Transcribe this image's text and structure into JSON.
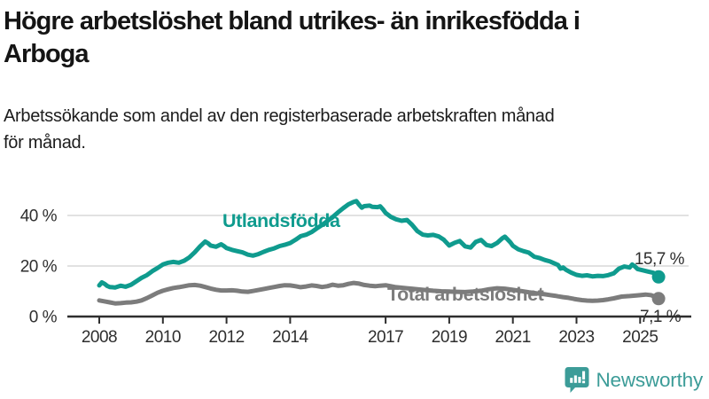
{
  "header": {
    "title_lines": [
      "Högre arbetslöshet bland utrikes- än inrikesfödda i",
      "Arboga"
    ],
    "subtitle_lines": [
      "Arbetssökande som andel av den registerbaserade arbetskraften månad",
      "för månad."
    ]
  },
  "chart_data": {
    "type": "line",
    "title": "Högre arbetslöshet bland utrikes- än inrikesfödda i Arboga",
    "subtitle": "Arbetssökande som andel av den registerbaserade arbetskraften månad för månad.",
    "xlabel": "",
    "ylabel": "",
    "ylim": [
      0,
      48
    ],
    "xlim": [
      2007.9,
      2026.3
    ],
    "grid": "horizontal",
    "legend_position": "inline-labels",
    "x_ticks": [
      2008,
      2010,
      2012,
      2014,
      2017,
      2019,
      2021,
      2023,
      2025
    ],
    "y_ticks": [
      {
        "value": 0,
        "label": "0 %"
      },
      {
        "value": 20,
        "label": "20 %"
      },
      {
        "value": 40,
        "label": "40 %"
      }
    ],
    "axis_color": "#2e2e2e",
    "grid_color": "#d8d8d8",
    "series": [
      {
        "name": "Utlandsfödda",
        "color": "#0f9b8e",
        "end_label": "15,7 %",
        "end_value": 15.7,
        "points": [
          [
            2008.0,
            12.3
          ],
          [
            2008.08,
            13.5
          ],
          [
            2008.17,
            12.9
          ],
          [
            2008.25,
            12.1
          ],
          [
            2008.33,
            11.7
          ],
          [
            2008.5,
            11.5
          ],
          [
            2008.67,
            12.2
          ],
          [
            2008.83,
            11.8
          ],
          [
            2009.0,
            12.6
          ],
          [
            2009.17,
            14.0
          ],
          [
            2009.33,
            15.3
          ],
          [
            2009.5,
            16.4
          ],
          [
            2009.67,
            18.0
          ],
          [
            2009.83,
            19.2
          ],
          [
            2010.0,
            20.6
          ],
          [
            2010.17,
            21.3
          ],
          [
            2010.33,
            21.6
          ],
          [
            2010.5,
            21.3
          ],
          [
            2010.67,
            22.1
          ],
          [
            2010.83,
            23.4
          ],
          [
            2011.0,
            25.4
          ],
          [
            2011.17,
            27.8
          ],
          [
            2011.33,
            29.7
          ],
          [
            2011.42,
            29.0
          ],
          [
            2011.5,
            28.1
          ],
          [
            2011.67,
            27.6
          ],
          [
            2011.83,
            28.6
          ],
          [
            2011.92,
            27.9
          ],
          [
            2012.0,
            27.1
          ],
          [
            2012.17,
            26.4
          ],
          [
            2012.33,
            25.9
          ],
          [
            2012.5,
            25.4
          ],
          [
            2012.67,
            24.5
          ],
          [
            2012.83,
            24.1
          ],
          [
            2013.0,
            24.7
          ],
          [
            2013.17,
            25.6
          ],
          [
            2013.33,
            26.4
          ],
          [
            2013.5,
            27.0
          ],
          [
            2013.67,
            27.9
          ],
          [
            2013.83,
            28.4
          ],
          [
            2014.0,
            29.1
          ],
          [
            2014.17,
            30.4
          ],
          [
            2014.33,
            31.8
          ],
          [
            2014.5,
            32.4
          ],
          [
            2014.67,
            33.4
          ],
          [
            2014.83,
            34.8
          ],
          [
            2015.0,
            36.2
          ],
          [
            2015.17,
            37.8
          ],
          [
            2015.33,
            39.3
          ],
          [
            2015.5,
            41.2
          ],
          [
            2015.67,
            42.9
          ],
          [
            2015.83,
            44.4
          ],
          [
            2016.0,
            45.4
          ],
          [
            2016.08,
            45.7
          ],
          [
            2016.17,
            44.2
          ],
          [
            2016.25,
            43.1
          ],
          [
            2016.33,
            43.7
          ],
          [
            2016.5,
            43.9
          ],
          [
            2016.58,
            43.4
          ],
          [
            2016.75,
            43.3
          ],
          [
            2016.83,
            43.6
          ],
          [
            2016.92,
            42.4
          ],
          [
            2017.0,
            41.0
          ],
          [
            2017.17,
            39.4
          ],
          [
            2017.33,
            38.5
          ],
          [
            2017.5,
            37.9
          ],
          [
            2017.67,
            38.2
          ],
          [
            2017.83,
            36.3
          ],
          [
            2018.0,
            33.8
          ],
          [
            2018.17,
            32.4
          ],
          [
            2018.33,
            32.1
          ],
          [
            2018.5,
            32.3
          ],
          [
            2018.67,
            31.7
          ],
          [
            2018.83,
            30.4
          ],
          [
            2019.0,
            28.1
          ],
          [
            2019.17,
            29.2
          ],
          [
            2019.33,
            29.9
          ],
          [
            2019.5,
            27.8
          ],
          [
            2019.67,
            27.3
          ],
          [
            2019.83,
            29.5
          ],
          [
            2020.0,
            30.3
          ],
          [
            2020.17,
            28.3
          ],
          [
            2020.33,
            27.9
          ],
          [
            2020.5,
            29.1
          ],
          [
            2020.67,
            31.0
          ],
          [
            2020.75,
            31.6
          ],
          [
            2020.92,
            29.4
          ],
          [
            2021.0,
            28.0
          ],
          [
            2021.17,
            26.6
          ],
          [
            2021.33,
            25.9
          ],
          [
            2021.5,
            25.3
          ],
          [
            2021.67,
            23.7
          ],
          [
            2021.83,
            23.2
          ],
          [
            2022.0,
            22.4
          ],
          [
            2022.17,
            21.8
          ],
          [
            2022.33,
            20.9
          ],
          [
            2022.42,
            20.4
          ],
          [
            2022.5,
            19.0
          ],
          [
            2022.58,
            19.4
          ],
          [
            2022.67,
            18.5
          ],
          [
            2022.83,
            17.4
          ],
          [
            2023.0,
            16.5
          ],
          [
            2023.17,
            16.1
          ],
          [
            2023.33,
            16.3
          ],
          [
            2023.5,
            15.9
          ],
          [
            2023.67,
            16.1
          ],
          [
            2023.83,
            16.0
          ],
          [
            2024.0,
            16.4
          ],
          [
            2024.17,
            17.1
          ],
          [
            2024.33,
            18.9
          ],
          [
            2024.5,
            19.8
          ],
          [
            2024.67,
            19.4
          ],
          [
            2024.75,
            20.6
          ],
          [
            2024.83,
            19.9
          ],
          [
            2024.92,
            18.8
          ],
          [
            2025.08,
            18.3
          ],
          [
            2025.25,
            17.8
          ],
          [
            2025.42,
            17.3
          ],
          [
            2025.58,
            15.7
          ]
        ]
      },
      {
        "name": "Total arbetslöshet",
        "color": "#7c7c7c",
        "end_label": "7,1 %",
        "end_value": 7.1,
        "points": [
          [
            2008.0,
            6.4
          ],
          [
            2008.17,
            6.0
          ],
          [
            2008.33,
            5.6
          ],
          [
            2008.5,
            5.2
          ],
          [
            2008.67,
            5.3
          ],
          [
            2008.83,
            5.5
          ],
          [
            2009.0,
            5.6
          ],
          [
            2009.17,
            5.9
          ],
          [
            2009.33,
            6.4
          ],
          [
            2009.5,
            7.3
          ],
          [
            2009.67,
            8.4
          ],
          [
            2009.83,
            9.4
          ],
          [
            2010.0,
            10.2
          ],
          [
            2010.17,
            10.8
          ],
          [
            2010.33,
            11.3
          ],
          [
            2010.5,
            11.6
          ],
          [
            2010.67,
            12.0
          ],
          [
            2010.83,
            12.4
          ],
          [
            2011.0,
            12.5
          ],
          [
            2011.17,
            12.2
          ],
          [
            2011.33,
            11.7
          ],
          [
            2011.5,
            11.1
          ],
          [
            2011.67,
            10.6
          ],
          [
            2011.83,
            10.3
          ],
          [
            2012.0,
            10.3
          ],
          [
            2012.17,
            10.4
          ],
          [
            2012.33,
            10.2
          ],
          [
            2012.5,
            9.9
          ],
          [
            2012.67,
            9.8
          ],
          [
            2012.83,
            10.1
          ],
          [
            2013.0,
            10.5
          ],
          [
            2013.17,
            10.9
          ],
          [
            2013.33,
            11.3
          ],
          [
            2013.5,
            11.7
          ],
          [
            2013.67,
            12.1
          ],
          [
            2013.83,
            12.4
          ],
          [
            2014.0,
            12.3
          ],
          [
            2014.17,
            12.0
          ],
          [
            2014.33,
            11.6
          ],
          [
            2014.5,
            11.9
          ],
          [
            2014.67,
            12.3
          ],
          [
            2014.83,
            12.1
          ],
          [
            2015.0,
            11.7
          ],
          [
            2015.17,
            12.0
          ],
          [
            2015.33,
            12.6
          ],
          [
            2015.5,
            12.2
          ],
          [
            2015.67,
            12.4
          ],
          [
            2015.83,
            12.9
          ],
          [
            2016.0,
            13.3
          ],
          [
            2016.17,
            13.0
          ],
          [
            2016.33,
            12.5
          ],
          [
            2016.5,
            12.2
          ],
          [
            2016.67,
            12.0
          ],
          [
            2016.83,
            12.2
          ],
          [
            2017.0,
            12.4
          ],
          [
            2017.17,
            12.0
          ],
          [
            2017.33,
            11.6
          ],
          [
            2017.5,
            11.4
          ],
          [
            2017.67,
            11.2
          ],
          [
            2017.83,
            11.0
          ],
          [
            2018.0,
            10.8
          ],
          [
            2018.25,
            10.5
          ],
          [
            2018.5,
            10.2
          ],
          [
            2018.75,
            10.0
          ],
          [
            2019.0,
            9.9
          ],
          [
            2019.25,
            9.8
          ],
          [
            2019.5,
            9.7
          ],
          [
            2019.75,
            9.9
          ],
          [
            2020.0,
            10.2
          ],
          [
            2020.25,
            10.8
          ],
          [
            2020.5,
            11.2
          ],
          [
            2020.75,
            11.0
          ],
          [
            2021.0,
            10.6
          ],
          [
            2021.25,
            10.1
          ],
          [
            2021.5,
            9.6
          ],
          [
            2021.75,
            9.2
          ],
          [
            2022.0,
            8.8
          ],
          [
            2022.17,
            8.5
          ],
          [
            2022.33,
            8.2
          ],
          [
            2022.42,
            8.0
          ],
          [
            2022.58,
            7.7
          ],
          [
            2022.75,
            7.4
          ],
          [
            2022.92,
            7.0
          ],
          [
            2023.0,
            6.8
          ],
          [
            2023.17,
            6.5
          ],
          [
            2023.33,
            6.3
          ],
          [
            2023.5,
            6.2
          ],
          [
            2023.67,
            6.3
          ],
          [
            2023.83,
            6.5
          ],
          [
            2024.0,
            6.8
          ],
          [
            2024.17,
            7.2
          ],
          [
            2024.42,
            7.9
          ],
          [
            2024.67,
            8.1
          ],
          [
            2024.92,
            8.4
          ],
          [
            2025.17,
            8.7
          ],
          [
            2025.33,
            8.5
          ],
          [
            2025.42,
            8.1
          ],
          [
            2025.58,
            7.1
          ]
        ]
      }
    ]
  },
  "footer": {
    "brand": "Newsworthy",
    "brand_color": "#3c9c98"
  }
}
